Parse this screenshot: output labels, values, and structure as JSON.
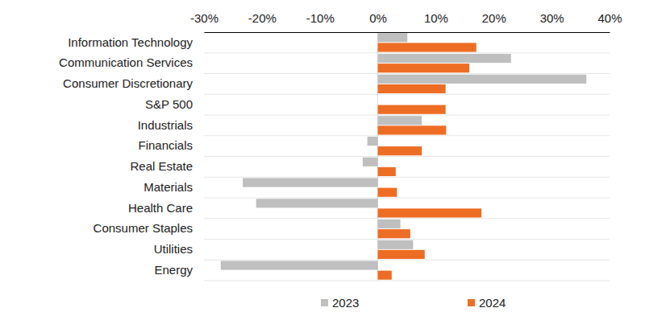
{
  "chart_data": {
    "type": "bar",
    "orientation": "horizontal",
    "categories": [
      "Information Technology",
      "Communication Services",
      "Consumer Discretionary",
      "S&P 500",
      "Industrials",
      "Financials",
      "Real Estate",
      "Materials",
      "Health Care",
      "Consumer Staples",
      "Utilities",
      "Energy"
    ],
    "series": [
      {
        "name": "2023",
        "color": "#bfbfbf",
        "values": [
          5.1,
          23.0,
          36.0,
          0,
          7.6,
          -1.8,
          -2.6,
          -23.3,
          -21.0,
          3.9,
          6.1,
          -27.1
        ]
      },
      {
        "name": "2024",
        "color": "#ee6d24",
        "values": [
          17.0,
          15.8,
          11.7,
          11.7,
          11.8,
          7.6,
          3.1,
          3.3,
          17.9,
          5.6,
          8.1,
          2.4
        ]
      }
    ],
    "xlim": [
      -30,
      40
    ],
    "xticks": [
      {
        "value": -30,
        "label": "-30%"
      },
      {
        "value": -20,
        "label": "-20%"
      },
      {
        "value": -10,
        "label": "-10%"
      },
      {
        "value": 0,
        "label": "0%"
      },
      {
        "value": 10,
        "label": "10%"
      },
      {
        "value": 20,
        "label": "20%"
      },
      {
        "value": 30,
        "label": "30%"
      },
      {
        "value": 40,
        "label": "40%"
      }
    ],
    "grid": true,
    "legend": "bottom"
  }
}
